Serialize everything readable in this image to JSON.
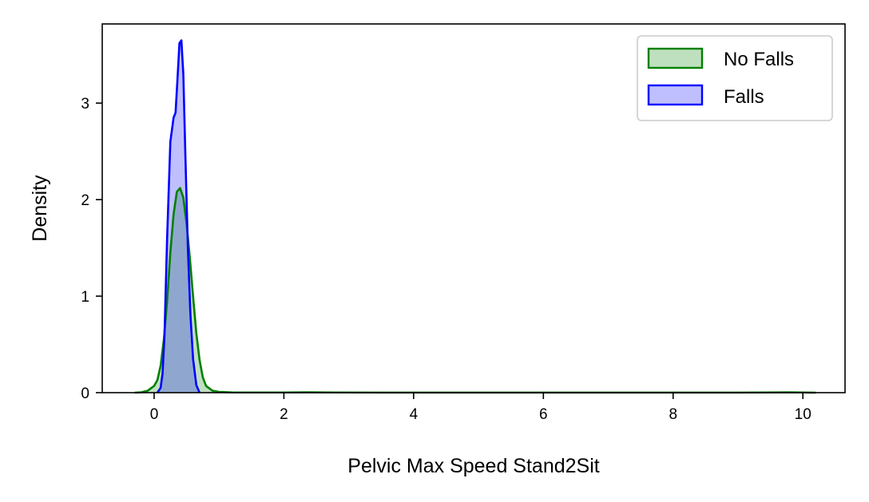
{
  "chart_data": {
    "type": "area",
    "title": "",
    "xlabel": "Pelvic Max Speed Stand2Sit",
    "ylabel": "Density",
    "xlim": [
      -0.8,
      10.65
    ],
    "ylim": [
      0,
      3.82
    ],
    "xticks": [
      0,
      2,
      4,
      6,
      8,
      10
    ],
    "yticks": [
      0,
      1,
      2,
      3
    ],
    "grid": false,
    "legend_position": "top-right",
    "series": [
      {
        "name": "No Falls",
        "color": "#008000",
        "fill": "#bfe0bf",
        "x": [
          -0.3,
          -0.2,
          -0.1,
          0.0,
          0.05,
          0.1,
          0.15,
          0.2,
          0.25,
          0.3,
          0.35,
          0.4,
          0.45,
          0.5,
          0.55,
          0.6,
          0.65,
          0.7,
          0.75,
          0.8,
          0.9,
          1.0,
          1.2,
          1.5,
          2.0,
          2.4,
          2.8,
          3.5,
          5.0,
          7.0,
          9.0,
          9.6,
          9.8,
          10.0,
          10.2
        ],
        "y": [
          0.0,
          0.004,
          0.02,
          0.07,
          0.13,
          0.28,
          0.55,
          0.95,
          1.45,
          1.85,
          2.08,
          2.12,
          2.02,
          1.75,
          1.4,
          1.0,
          0.62,
          0.34,
          0.16,
          0.07,
          0.02,
          0.008,
          0.003,
          0.002,
          0.002,
          0.004,
          0.002,
          0.001,
          0.001,
          0.001,
          0.001,
          0.003,
          0.004,
          0.002,
          0.0
        ]
      },
      {
        "name": "Falls",
        "color": "#0000ff",
        "fill": "#bfbfff",
        "x": [
          0.05,
          0.1,
          0.13,
          0.16,
          0.2,
          0.25,
          0.3,
          0.33,
          0.36,
          0.39,
          0.42,
          0.45,
          0.48,
          0.52,
          0.56,
          0.6,
          0.65,
          0.7
        ],
        "y": [
          0.0,
          0.05,
          0.2,
          0.6,
          1.6,
          2.6,
          2.85,
          2.9,
          3.25,
          3.62,
          3.65,
          3.3,
          2.5,
          1.5,
          0.8,
          0.35,
          0.08,
          0.0
        ]
      }
    ]
  }
}
